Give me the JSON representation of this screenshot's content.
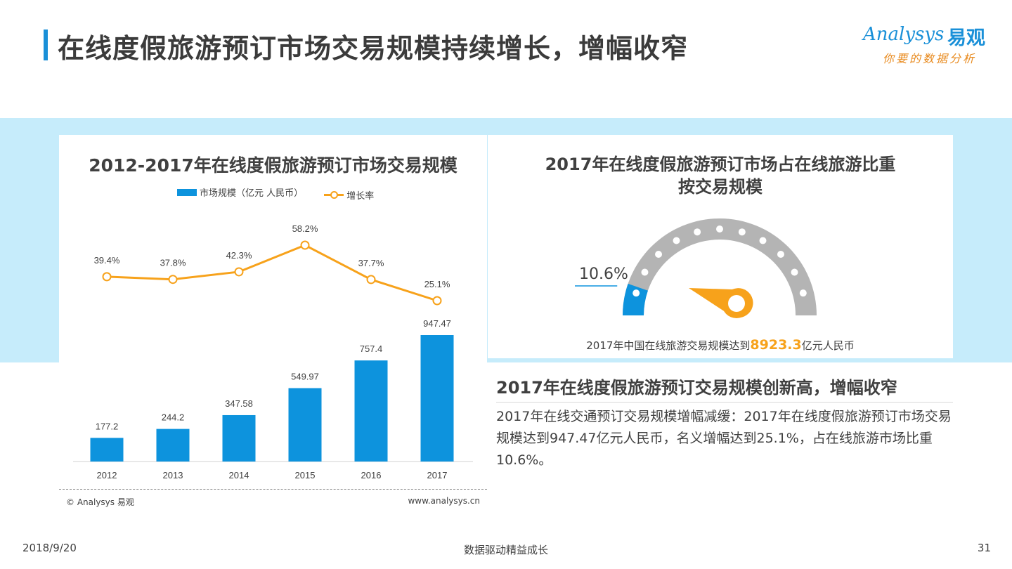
{
  "page": {
    "title": "在线度假旅游预订市场交易规模持续增长，增幅收窄",
    "footer_date": "2018/9/20",
    "footer_center": "数据驱动精益成长",
    "page_number": "31"
  },
  "logo": {
    "en": "Analysys",
    "cn": "易观",
    "tagline": "你要的数据分析"
  },
  "colors": {
    "accent": "#1a90d8",
    "bar": "#0d93dd",
    "line": "#f7a21b",
    "band": "#c6ecfb",
    "gauge_grey": "#b4b4b4"
  },
  "chart_data": [
    {
      "type": "bar",
      "title": "2012-2017年在线度假旅游预订市场交易规模",
      "categories": [
        "2012",
        "2013",
        "2014",
        "2015",
        "2016",
        "2017"
      ],
      "series": [
        {
          "name": "市场规模（亿元 人民币）",
          "type": "bar",
          "values": [
            177.2,
            244.2,
            347.58,
            549.97,
            757.4,
            947.47
          ],
          "labels": [
            "177.2",
            "244.2",
            "347.58",
            "549.97",
            "757.4",
            "947.47"
          ]
        },
        {
          "name": "增长率",
          "type": "line",
          "values": [
            39.4,
            37.8,
            42.3,
            58.2,
            37.7,
            25.1
          ],
          "labels": [
            "39.4%",
            "37.8%",
            "42.3%",
            "58.2%",
            "37.7%",
            "25.1%"
          ]
        }
      ],
      "legend_position": "top",
      "grid": false,
      "copyright": "© Analysys 易观",
      "website": "www.analysys.cn"
    },
    {
      "type": "gauge",
      "title_line1": "2017年在线度假旅游预订市场占在线旅游比重",
      "title_line2": "按交易规模",
      "value": 10.6,
      "label": "10.6%",
      "note_prefix": "2017年中国在线旅游交易规模达到",
      "note_value": "8923.3",
      "note_suffix": "亿元人民币"
    }
  ],
  "summary": {
    "heading": "2017年在线度假旅游预订交易规模创新高，增幅收窄",
    "body": "2017年在线交通预订交易规模增幅减缓：2017年在线度假旅游预订市场交易规模达到947.47亿元人民币，名义增幅达到25.1%，占在线旅游市场比重10.6%。"
  }
}
